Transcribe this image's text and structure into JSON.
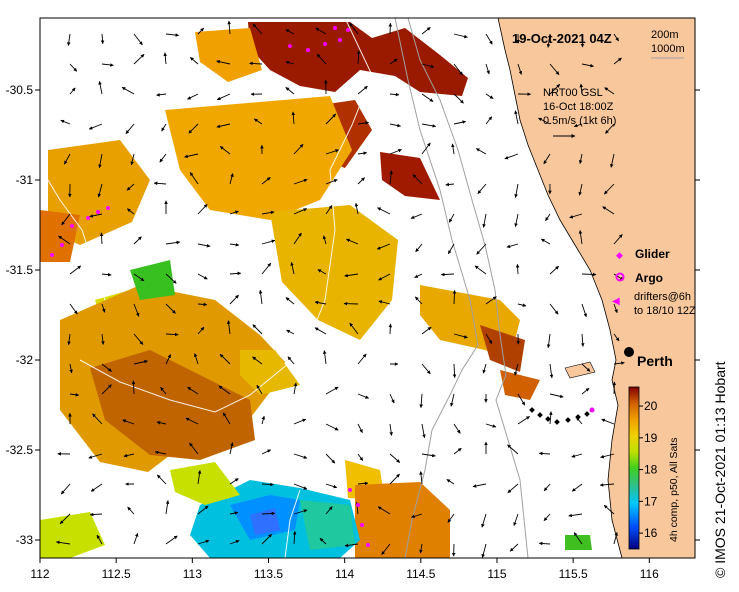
{
  "map": {
    "date_title": "19-Oct-2021 04Z",
    "contours": [
      "200m",
      "1000m"
    ],
    "current_source": "NRT00 GSL",
    "current_time": "16-Oct 18:00Z",
    "current_scale": "0.5m/s (1kt 6h)",
    "city": "Perth",
    "x_ticks": [
      "112",
      "112.5",
      "113",
      "113.5",
      "114",
      "114.5",
      "115",
      "115.5",
      "116"
    ],
    "y_ticks": [
      "-30.5",
      "-31",
      "-31.5",
      "-32",
      "-32.5",
      "-33"
    ],
    "x_range": [
      112,
      116.3
    ],
    "y_range": [
      -33.1,
      -30.1
    ]
  },
  "legend": {
    "glider": "Glider",
    "argo": "Argo",
    "drifters_line1": "drifters@6h",
    "drifters_line2": "to 18/10 12Z"
  },
  "colorbar": {
    "ticks": [
      "20",
      "19",
      "18",
      "17",
      "16"
    ],
    "caption": "4h comp, p50, All Sats"
  },
  "credit": "© IMOS 21-Oct-2021 01:13 Hobart",
  "colors": {
    "land": "#f9c79c",
    "glider": "#ff00ff",
    "axis": "#000000"
  }
}
